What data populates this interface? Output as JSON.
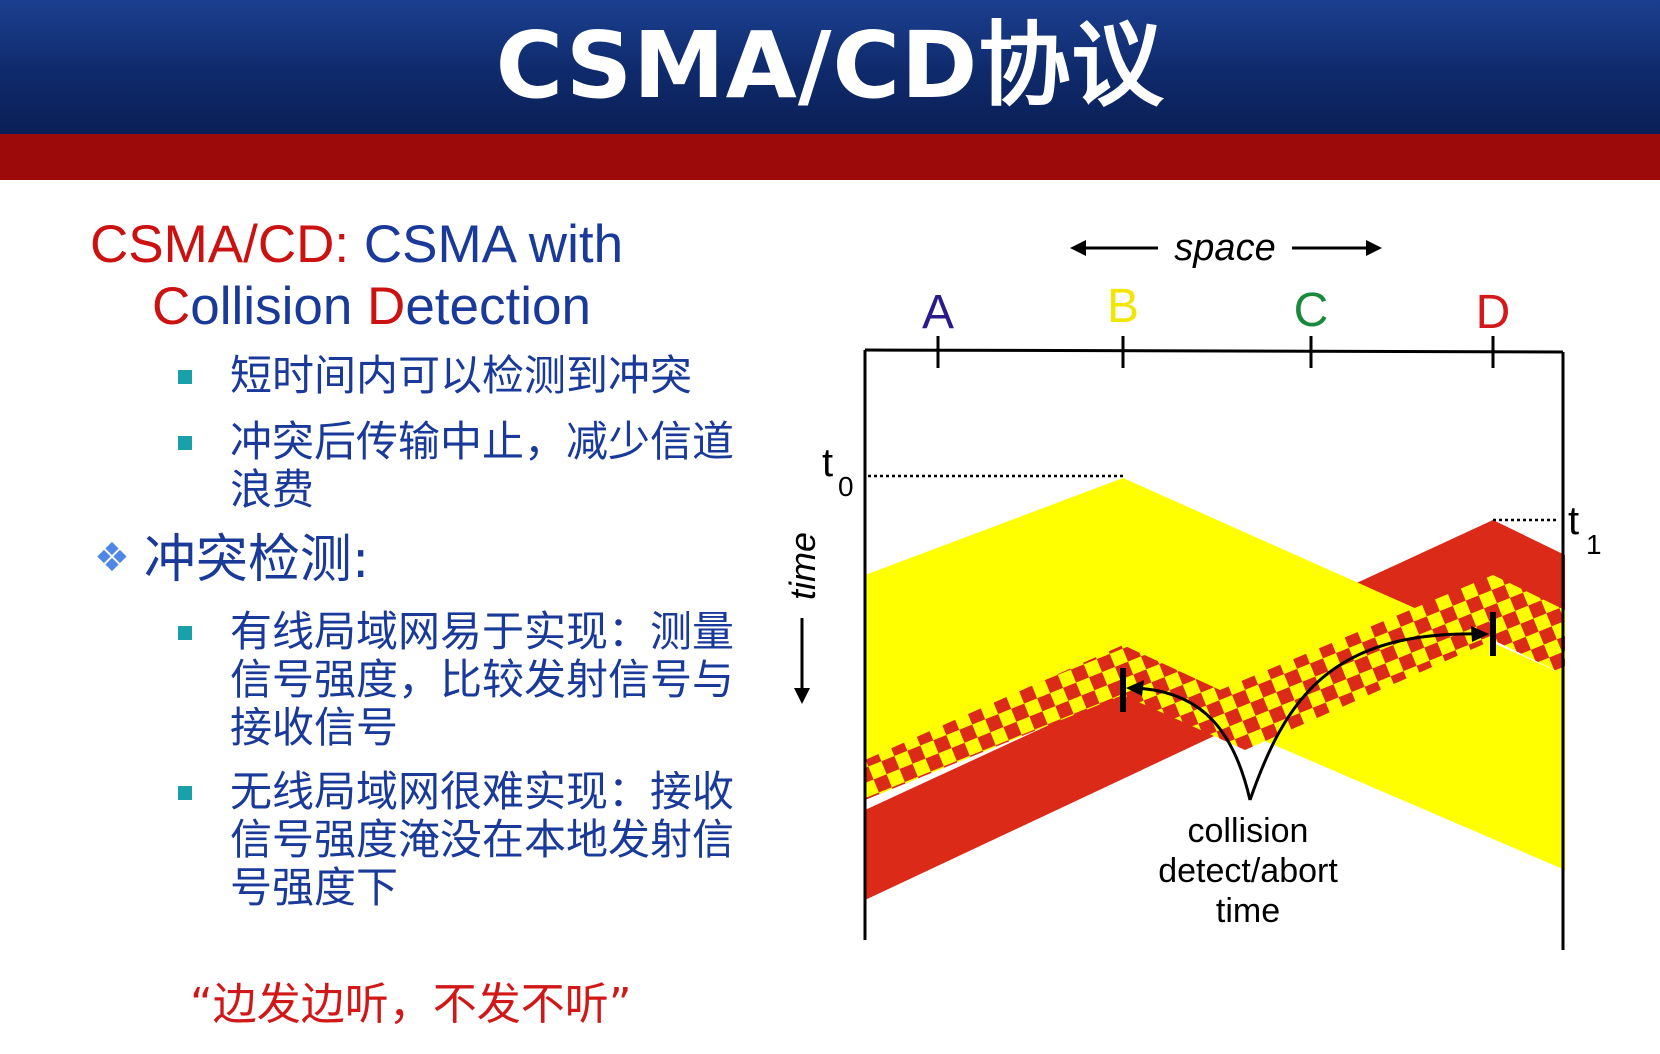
{
  "slide": {
    "title": "CSMA/CD协议"
  },
  "heading": {
    "line1_red": "CSMA/CD:",
    "line1_blue": " CSMA with",
    "line2_c": "C",
    "line2_ollision": "ollision ",
    "line2_d": "D",
    "line2_etection": "etection"
  },
  "bullets": [
    "短时间内可以检测到冲突",
    "冲突后传输中止，减少信道浪费",
    "有线局域网易于实现：测量信号强度，比较发射信号与接收信号",
    "无线局域网很难实现：接收信号强度淹没在本地发射信号强度下"
  ],
  "section": {
    "glyph": "❖",
    "label": "冲突检测:"
  },
  "quote": "“边发边听，不发不听”",
  "diagram": {
    "space_label": "space",
    "time_label": "time",
    "nodes": [
      {
        "label": "A",
        "color": "#2b1a8a"
      },
      {
        "label": "B",
        "color": "#f2e500"
      },
      {
        "label": "C",
        "color": "#1a8a3a"
      },
      {
        "label": "D",
        "color": "#d21a1a"
      }
    ],
    "t0_label": "t",
    "t0_sub": "0",
    "t1_label": "t",
    "t1_sub": "1",
    "annotation": [
      "collision",
      "detect/abort",
      "time"
    ],
    "colors": {
      "yellow": "#ffff00",
      "red": "#dc2a18",
      "line": "#000000"
    }
  }
}
